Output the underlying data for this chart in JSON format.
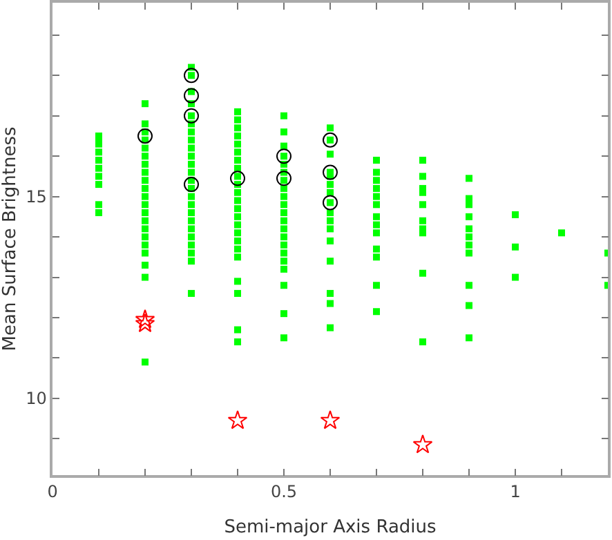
{
  "chart_data": {
    "type": "scatter",
    "xlabel": "Semi-major Axis Radius",
    "ylabel": "Mean Surface Brightness",
    "xlim": [
      0,
      1.2
    ],
    "ylim": [
      8.1,
      19.8
    ],
    "xticks": [
      0,
      {
        "value": 0.1,
        "label": null
      },
      {
        "value": 0.2,
        "label": null
      },
      {
        "value": 0.3,
        "label": null
      },
      {
        "value": 0.4,
        "label": null
      },
      0.5,
      {
        "value": 0.6,
        "label": null
      },
      {
        "value": 0.7,
        "label": null
      },
      {
        "value": 0.8,
        "label": null
      },
      {
        "value": 0.9,
        "label": null
      },
      1,
      {
        "value": 1.1,
        "label": null
      }
    ],
    "yticks": [
      {
        "value": 9,
        "label": null
      },
      10,
      {
        "value": 11,
        "label": null
      },
      {
        "value": 12,
        "label": null
      },
      {
        "value": 13,
        "label": null
      },
      {
        "value": 14,
        "label": null
      },
      15,
      {
        "value": 16,
        "label": null
      },
      {
        "value": 17,
        "label": null
      },
      {
        "value": 18,
        "label": null
      },
      {
        "value": 19,
        "label": null
      }
    ],
    "series": [
      {
        "color": "#00ff00",
        "marker": "square",
        "x": [
          0.1,
          0.1,
          0.1,
          0.1,
          0.1,
          0.1,
          0.1,
          0.1,
          0.1,
          0.1,
          0.2,
          0.2,
          0.2,
          0.2,
          0.2,
          0.2,
          0.2,
          0.2,
          0.2,
          0.2,
          0.2,
          0.2,
          0.2,
          0.2,
          0.2,
          0.2,
          0.2,
          0.2,
          0.2,
          0.2,
          0.2,
          0.3,
          0.3,
          0.3,
          0.3,
          0.3,
          0.3,
          0.3,
          0.3,
          0.3,
          0.3,
          0.3,
          0.3,
          0.3,
          0.3,
          0.3,
          0.3,
          0.3,
          0.3,
          0.3,
          0.3,
          0.3,
          0.3,
          0.3,
          0.3,
          0.4,
          0.4,
          0.4,
          0.4,
          0.4,
          0.4,
          0.4,
          0.4,
          0.4,
          0.4,
          0.4,
          0.4,
          0.4,
          0.4,
          0.4,
          0.4,
          0.4,
          0.4,
          0.4,
          0.4,
          0.4,
          0.4,
          0.4,
          0.5,
          0.5,
          0.5,
          0.5,
          0.5,
          0.5,
          0.5,
          0.5,
          0.5,
          0.5,
          0.5,
          0.5,
          0.5,
          0.5,
          0.5,
          0.5,
          0.5,
          0.5,
          0.5,
          0.5,
          0.5,
          0.6,
          0.6,
          0.6,
          0.6,
          0.6,
          0.6,
          0.6,
          0.6,
          0.6,
          0.6,
          0.6,
          0.6,
          0.6,
          0.6,
          0.6,
          0.6,
          0.7,
          0.7,
          0.7,
          0.7,
          0.7,
          0.7,
          0.7,
          0.7,
          0.7,
          0.7,
          0.7,
          0.7,
          0.7,
          0.8,
          0.8,
          0.8,
          0.8,
          0.8,
          0.8,
          0.8,
          0.8,
          0.8,
          0.8,
          0.9,
          0.9,
          0.9,
          0.9,
          0.9,
          0.9,
          0.9,
          0.9,
          0.9,
          0.9,
          0.9,
          1.0,
          1.0,
          1.0,
          1.1,
          1.2,
          1.2
        ],
        "values": [
          16.5,
          16.4,
          16.3,
          16.1,
          15.9,
          15.7,
          15.5,
          15.3,
          14.8,
          14.6,
          17.3,
          16.8,
          16.6,
          16.4,
          16.2,
          16.0,
          15.8,
          15.6,
          15.4,
          15.2,
          15.0,
          14.8,
          14.6,
          14.4,
          14.2,
          14.0,
          13.8,
          13.6,
          13.3,
          13.0,
          10.9,
          18.2,
          18.0,
          17.6,
          17.3,
          17.0,
          16.8,
          16.6,
          16.4,
          16.2,
          16.0,
          15.8,
          15.6,
          15.4,
          15.2,
          15.0,
          14.8,
          14.6,
          14.4,
          14.2,
          14.0,
          13.8,
          13.6,
          13.4,
          12.6,
          17.1,
          16.9,
          16.7,
          16.5,
          16.3,
          16.1,
          15.9,
          15.7,
          15.5,
          15.3,
          15.1,
          14.9,
          14.7,
          14.5,
          14.3,
          14.1,
          13.9,
          13.7,
          13.5,
          12.9,
          12.6,
          11.7,
          11.4,
          17.0,
          16.6,
          16.25,
          16.0,
          15.8,
          15.6,
          15.4,
          15.2,
          15.0,
          14.8,
          14.6,
          14.4,
          14.2,
          14.0,
          13.8,
          13.6,
          13.4,
          13.2,
          12.8,
          12.1,
          11.5,
          16.7,
          16.4,
          16.05,
          15.6,
          15.5,
          15.3,
          15.1,
          14.85,
          14.6,
          14.4,
          14.2,
          13.9,
          13.4,
          12.6,
          12.35,
          11.75,
          15.9,
          15.6,
          15.4,
          15.2,
          15.0,
          14.8,
          14.5,
          14.3,
          14.1,
          13.7,
          13.5,
          12.8,
          12.15,
          15.9,
          15.5,
          15.2,
          15.1,
          14.8,
          14.4,
          14.2,
          14.1,
          13.1,
          11.4,
          15.45,
          14.95,
          14.8,
          14.5,
          14.2,
          14.0,
          13.8,
          13.6,
          12.8,
          12.3,
          11.5,
          14.55,
          13.75,
          13.0,
          14.1,
          13.6,
          12.8
        ]
      },
      {
        "color": "#ff0000",
        "marker": "star",
        "x": [
          0.2,
          0.2,
          0.4,
          0.6,
          0.8
        ],
        "values": [
          11.85,
          11.95,
          9.45,
          9.45,
          8.85
        ]
      },
      {
        "color": "#000000",
        "marker": "circle",
        "x": [
          0.2,
          0.3,
          0.3,
          0.3,
          0.3,
          0.4,
          0.5,
          0.5,
          0.6,
          0.6,
          0.6
        ],
        "values": [
          16.5,
          18.0,
          17.5,
          17.0,
          15.3,
          15.45,
          16.0,
          15.45,
          16.4,
          15.6,
          14.85
        ]
      }
    ]
  }
}
